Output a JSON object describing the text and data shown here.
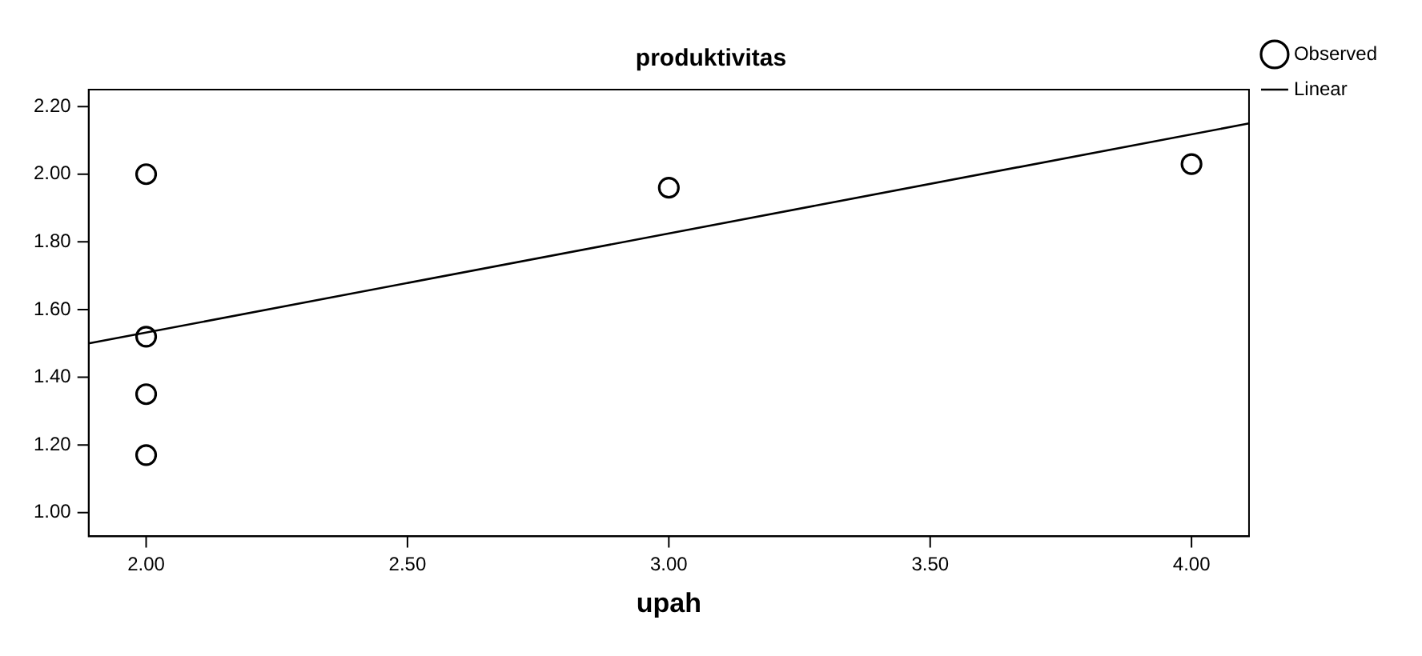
{
  "chart_data": {
    "type": "scatter",
    "title": "produktivitas",
    "xlabel": "upah",
    "xlim": [
      1.89,
      4.11
    ],
    "xticks": [
      {
        "value": 2,
        "label": "2.00"
      },
      {
        "value": 2.5,
        "label": "2.50"
      },
      {
        "value": 3,
        "label": "3.00"
      },
      {
        "value": 3.5,
        "label": "3.50"
      },
      {
        "value": 4,
        "label": "4.00"
      }
    ],
    "ylim": [
      0.93,
      2.25
    ],
    "yticks": [
      {
        "value": 1,
        "label": "1.00"
      },
      {
        "value": 1.2,
        "label": "1.20"
      },
      {
        "value": 1.4,
        "label": "1.40"
      },
      {
        "value": 1.6,
        "label": "1.60"
      },
      {
        "value": 1.8,
        "label": "1.80"
      },
      {
        "value": 2,
        "label": "2.00"
      },
      {
        "value": 2.2,
        "label": "2.20"
      }
    ],
    "grid": false,
    "legend": "top right",
    "series": [
      {
        "name": "Observed",
        "type": "scatter",
        "marker": "circle",
        "color": "#000000",
        "x": [
          2,
          2,
          2,
          2,
          3,
          4
        ],
        "values": [
          2.0,
          1.52,
          1.35,
          1.17,
          1.96,
          2.03
        ]
      },
      {
        "name": "Linear",
        "type": "line",
        "marker": "none",
        "line_style": "solid",
        "color": "#000000",
        "x": [
          1.89,
          4.11
        ],
        "values": [
          1.5,
          2.15
        ]
      }
    ]
  }
}
